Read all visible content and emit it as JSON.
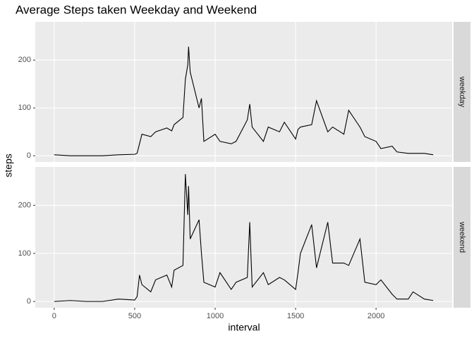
{
  "chart_data": {
    "type": "line",
    "title": "Average Steps taken Weekday and Weekend",
    "x_label": "interval",
    "y_label": "steps",
    "x": [
      0,
      100,
      200,
      300,
      400,
      500,
      515,
      530,
      545,
      600,
      630,
      700,
      730,
      745,
      800,
      815,
      830,
      835,
      845,
      900,
      915,
      930,
      1000,
      1030,
      1100,
      1130,
      1200,
      1215,
      1230,
      1300,
      1330,
      1400,
      1430,
      1500,
      1515,
      1530,
      1600,
      1630,
      1700,
      1730,
      1800,
      1830,
      1900,
      1930,
      2000,
      2030,
      2100,
      2130,
      2200,
      2230,
      2300,
      2355
    ],
    "series": [
      {
        "name": "weekday",
        "color": "#000000",
        "values": [
          2,
          0,
          0,
          0,
          2,
          3,
          5,
          25,
          45,
          40,
          50,
          58,
          52,
          65,
          80,
          160,
          190,
          228,
          175,
          100,
          120,
          30,
          45,
          30,
          25,
          30,
          75,
          108,
          60,
          30,
          60,
          50,
          70,
          35,
          55,
          60,
          65,
          115,
          50,
          60,
          45,
          95,
          60,
          40,
          30,
          15,
          20,
          8,
          5,
          5,
          5,
          2
        ]
      },
      {
        "name": "weekend",
        "color": "#000000",
        "values": [
          0,
          2,
          0,
          0,
          5,
          3,
          10,
          55,
          35,
          20,
          45,
          55,
          30,
          65,
          75,
          265,
          180,
          240,
          130,
          170,
          100,
          40,
          30,
          60,
          25,
          40,
          50,
          165,
          30,
          60,
          35,
          50,
          45,
          25,
          60,
          100,
          160,
          70,
          165,
          80,
          80,
          75,
          130,
          40,
          35,
          45,
          15,
          5,
          5,
          20,
          5,
          2
        ]
      }
    ],
    "xlim": [
      -117.75,
      2472.75
    ],
    "xticks": [
      0,
      500,
      1000,
      1500,
      2000
    ],
    "ylim": [
      -13,
      280
    ],
    "yticks": [
      0,
      100,
      200
    ],
    "grid": true
  }
}
